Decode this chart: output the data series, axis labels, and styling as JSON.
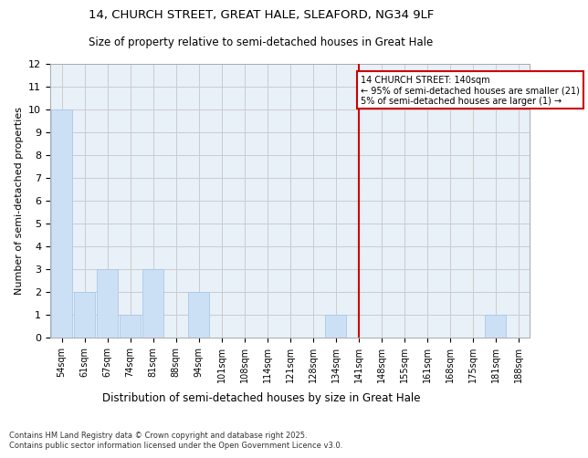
{
  "title1": "14, CHURCH STREET, GREAT HALE, SLEAFORD, NG34 9LF",
  "title2": "Size of property relative to semi-detached houses in Great Hale",
  "xlabel": "Distribution of semi-detached houses by size in Great Hale",
  "ylabel": "Number of semi-detached properties",
  "categories": [
    "54sqm",
    "61sqm",
    "67sqm",
    "74sqm",
    "81sqm",
    "88sqm",
    "94sqm",
    "101sqm",
    "108sqm",
    "114sqm",
    "121sqm",
    "128sqm",
    "134sqm",
    "141sqm",
    "148sqm",
    "155sqm",
    "161sqm",
    "168sqm",
    "175sqm",
    "181sqm",
    "188sqm"
  ],
  "values": [
    10,
    2,
    3,
    1,
    3,
    0,
    2,
    0,
    0,
    0,
    0,
    0,
    1,
    0,
    0,
    0,
    0,
    0,
    0,
    1,
    0
  ],
  "bar_color": "#cce0f5",
  "bar_edge_color": "#aac8e8",
  "grid_color": "#cccccc",
  "bg_color": "#e8f0f8",
  "red_line_index": 13,
  "annotation_title": "14 CHURCH STREET: 140sqm",
  "annotation_line1": "← 95% of semi-detached houses are smaller (21)",
  "annotation_line2": "5% of semi-detached houses are larger (1) →",
  "annotation_box_color": "#ffffff",
  "annotation_box_edge": "#cc0000",
  "red_line_color": "#cc0000",
  "ylim": [
    0,
    12
  ],
  "yticks": [
    0,
    1,
    2,
    3,
    4,
    5,
    6,
    7,
    8,
    9,
    10,
    11,
    12
  ],
  "footer1": "Contains HM Land Registry data © Crown copyright and database right 2025.",
  "footer2": "Contains public sector information licensed under the Open Government Licence v3.0."
}
